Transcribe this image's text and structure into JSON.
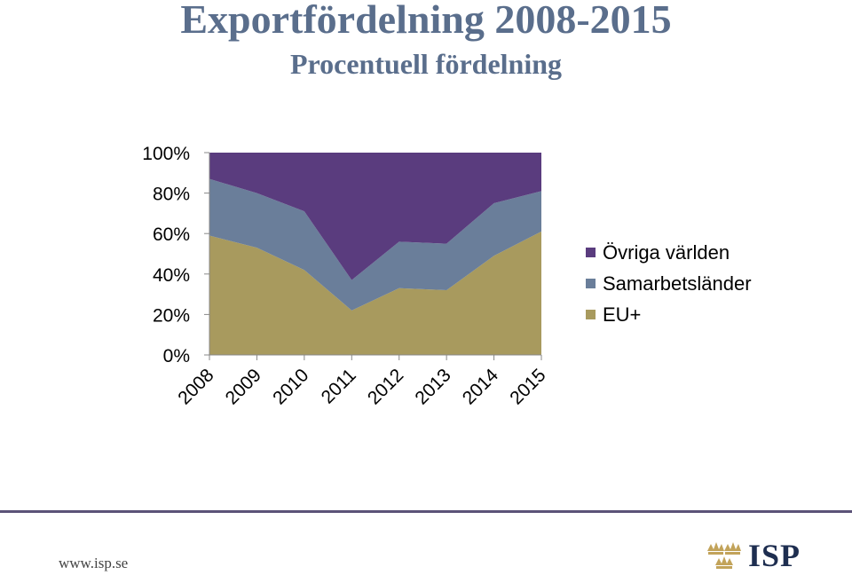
{
  "header": {
    "title": "Exportfördelning 2008-2015",
    "subtitle": "Procentuell fördelning"
  },
  "chart_data": {
    "type": "area",
    "stacked": true,
    "percent": true,
    "x": [
      "2008",
      "2009",
      "2010",
      "2011",
      "2012",
      "2013",
      "2014",
      "2015"
    ],
    "ylim": [
      0,
      100
    ],
    "yticks": [
      "0%",
      "20%",
      "40%",
      "60%",
      "80%",
      "100%"
    ],
    "grid": false,
    "legend_position": "right",
    "series": [
      {
        "name": "EU+",
        "color": "#a89a5e",
        "values": [
          59,
          53,
          42,
          22,
          33,
          32,
          49,
          61
        ]
      },
      {
        "name": "Samarbetsländer",
        "color": "#6a7e9a",
        "values": [
          28,
          27,
          29,
          15,
          23,
          23,
          26,
          20
        ]
      },
      {
        "name": "Övriga världen",
        "color": "#5a3c7e",
        "values": [
          13,
          20,
          29,
          63,
          44,
          45,
          25,
          19
        ]
      }
    ]
  },
  "legend": {
    "items": [
      {
        "label": "Övriga världen",
        "color": "#5a3c7e"
      },
      {
        "label": "Samarbetsländer",
        "color": "#6a7e9a"
      },
      {
        "label": "EU+",
        "color": "#a89a5e"
      }
    ]
  },
  "footer": {
    "url": "www.isp.se",
    "logo_text": "ISP",
    "line_color": "#5b5378"
  }
}
